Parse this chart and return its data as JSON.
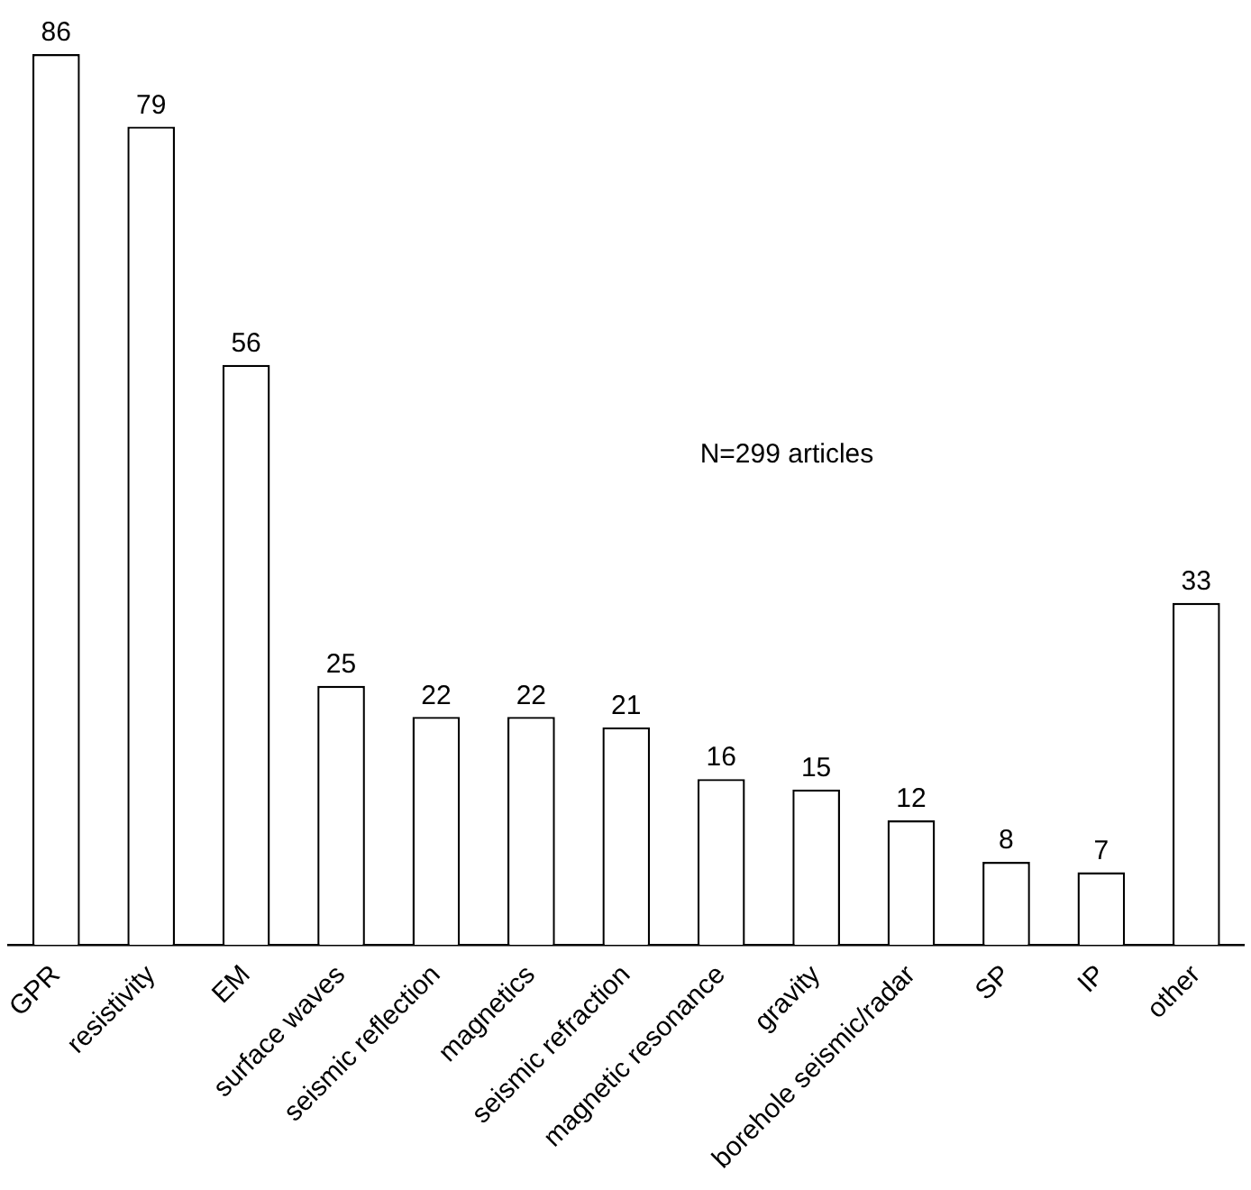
{
  "chart_data": {
    "type": "bar",
    "categories": [
      "GPR",
      "resistivity",
      "EM",
      "surface waves",
      "seismic reflection",
      "magnetics",
      "seismic refraction",
      "magnetic resonance",
      "gravity",
      "borehole seismic/radar",
      "SP",
      "IP",
      "other"
    ],
    "values": [
      86,
      79,
      56,
      25,
      22,
      22,
      21,
      16,
      15,
      12,
      8,
      7,
      33
    ],
    "color": "#ffffff",
    "data_labels": true,
    "annotations": [
      "N=299 articles"
    ],
    "grid": false,
    "legend": false
  }
}
